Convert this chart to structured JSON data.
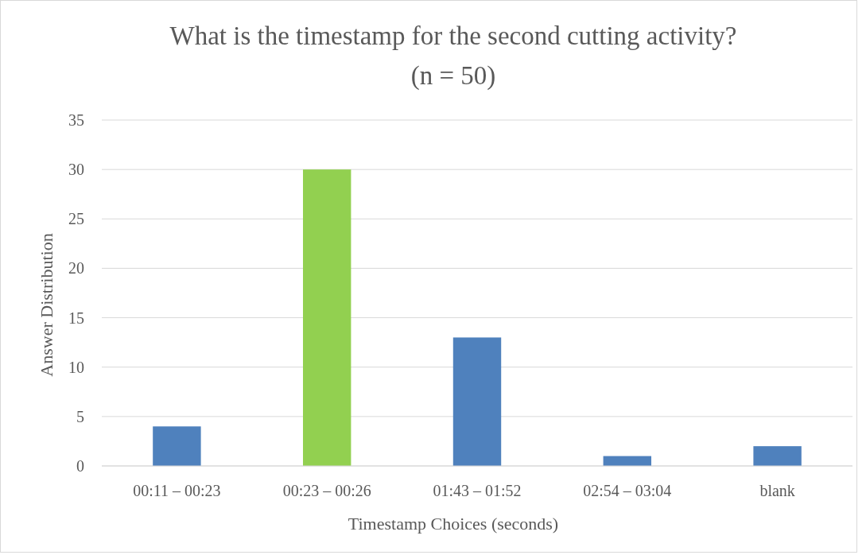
{
  "chart_data": {
    "type": "bar",
    "title": "What is the timestamp for the second cutting activity?",
    "subtitle": "(n = 50)",
    "xlabel": "Timestamp Choices (seconds)",
    "ylabel": "Answer Distribution",
    "categories": [
      "00:11 – 00:23",
      "00:23 – 00:26",
      "01:43 – 01:52",
      "02:54 – 03:04",
      "blank"
    ],
    "values": [
      4,
      30,
      13,
      1,
      2
    ],
    "colors": [
      "#4f81bd",
      "#92d050",
      "#4f81bd",
      "#4f81bd",
      "#4f81bd"
    ],
    "ylim": [
      0,
      35
    ],
    "yticks": [
      0,
      5,
      10,
      15,
      20,
      25,
      30,
      35
    ],
    "grid": "y"
  }
}
